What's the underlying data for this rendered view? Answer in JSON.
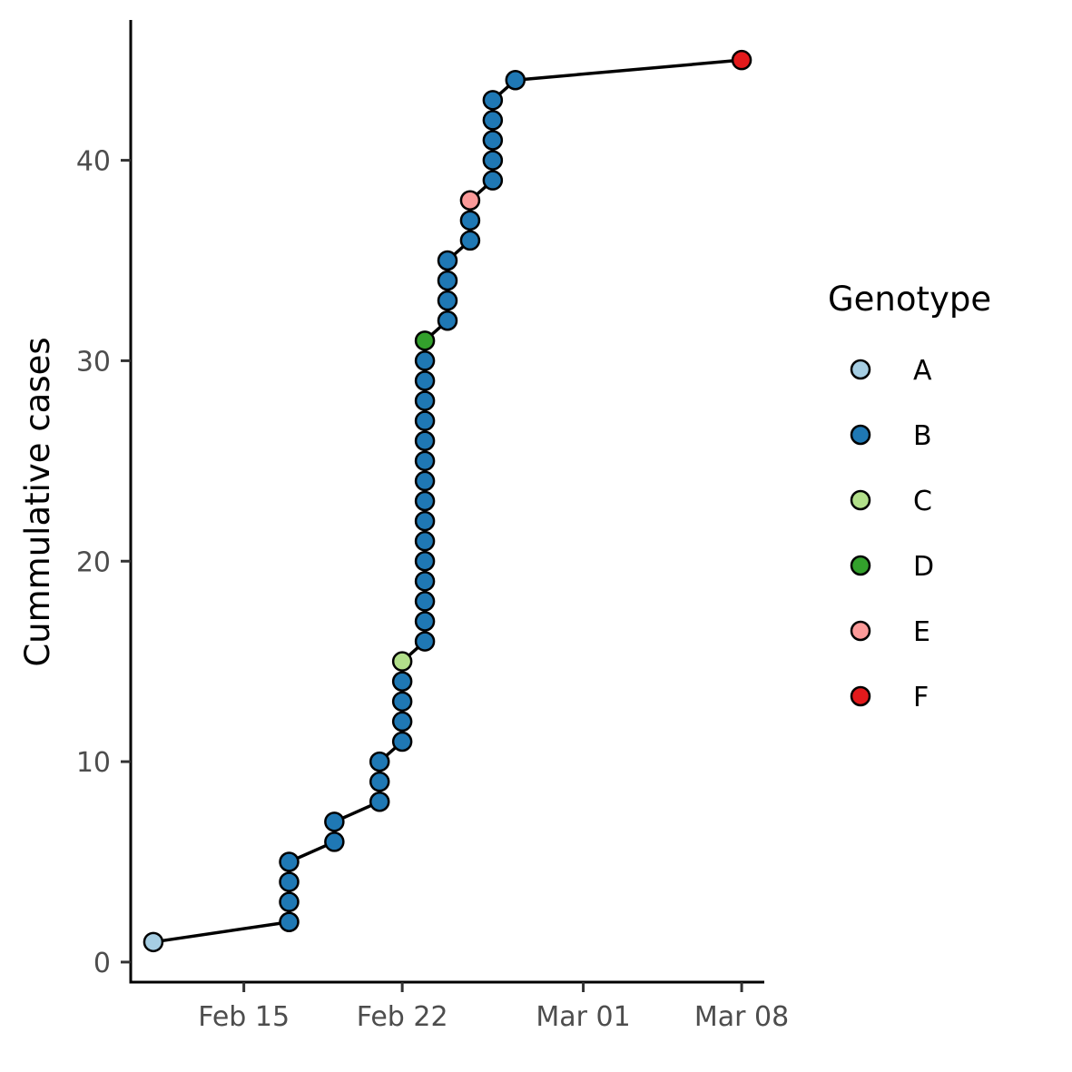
{
  "chart_data": {
    "type": "scatter",
    "subtype": "cumulative line with points",
    "title": "",
    "xlabel": "",
    "ylabel": "Cummulative cases",
    "x_scale": "date",
    "xlim": [
      "2020-02-10",
      "2020-03-09"
    ],
    "ylim": [
      -1,
      47
    ],
    "x_ticks": [
      {
        "value": "2020-02-15",
        "label": "Feb 15"
      },
      {
        "value": "2020-02-22",
        "label": "Feb 22"
      },
      {
        "value": "2020-03-01",
        "label": "Mar 01"
      },
      {
        "value": "2020-03-08",
        "label": "Mar 08"
      }
    ],
    "y_ticks": [
      0,
      10,
      20,
      30,
      40
    ],
    "grid": false,
    "legend": {
      "title": "Genotype",
      "placement": "right",
      "entries": [
        {
          "name": "A",
          "color": "#a6cee3"
        },
        {
          "name": "B",
          "color": "#1f78b4"
        },
        {
          "name": "C",
          "color": "#b2df8a"
        },
        {
          "name": "D",
          "color": "#33a02c"
        },
        {
          "name": "E",
          "color": "#fb9a99"
        },
        {
          "name": "F",
          "color": "#e31a1c"
        }
      ]
    },
    "line_color": "#000000",
    "point_outline": "#000000",
    "points": [
      {
        "date": "2020-02-11",
        "y": 1,
        "genotype": "A"
      },
      {
        "date": "2020-02-17",
        "y": 2,
        "genotype": "B"
      },
      {
        "date": "2020-02-17",
        "y": 3,
        "genotype": "B"
      },
      {
        "date": "2020-02-17",
        "y": 4,
        "genotype": "B"
      },
      {
        "date": "2020-02-17",
        "y": 5,
        "genotype": "B"
      },
      {
        "date": "2020-02-19",
        "y": 6,
        "genotype": "B"
      },
      {
        "date": "2020-02-19",
        "y": 7,
        "genotype": "B"
      },
      {
        "date": "2020-02-21",
        "y": 8,
        "genotype": "B"
      },
      {
        "date": "2020-02-21",
        "y": 9,
        "genotype": "B"
      },
      {
        "date": "2020-02-21",
        "y": 10,
        "genotype": "B"
      },
      {
        "date": "2020-02-22",
        "y": 11,
        "genotype": "B"
      },
      {
        "date": "2020-02-22",
        "y": 12,
        "genotype": "B"
      },
      {
        "date": "2020-02-22",
        "y": 13,
        "genotype": "B"
      },
      {
        "date": "2020-02-22",
        "y": 14,
        "genotype": "B"
      },
      {
        "date": "2020-02-22",
        "y": 15,
        "genotype": "C"
      },
      {
        "date": "2020-02-23",
        "y": 16,
        "genotype": "B"
      },
      {
        "date": "2020-02-23",
        "y": 17,
        "genotype": "B"
      },
      {
        "date": "2020-02-23",
        "y": 18,
        "genotype": "B"
      },
      {
        "date": "2020-02-23",
        "y": 19,
        "genotype": "B"
      },
      {
        "date": "2020-02-23",
        "y": 20,
        "genotype": "B"
      },
      {
        "date": "2020-02-23",
        "y": 21,
        "genotype": "B"
      },
      {
        "date": "2020-02-23",
        "y": 22,
        "genotype": "B"
      },
      {
        "date": "2020-02-23",
        "y": 23,
        "genotype": "B"
      },
      {
        "date": "2020-02-23",
        "y": 24,
        "genotype": "B"
      },
      {
        "date": "2020-02-23",
        "y": 25,
        "genotype": "B"
      },
      {
        "date": "2020-02-23",
        "y": 26,
        "genotype": "B"
      },
      {
        "date": "2020-02-23",
        "y": 27,
        "genotype": "B"
      },
      {
        "date": "2020-02-23",
        "y": 28,
        "genotype": "B"
      },
      {
        "date": "2020-02-23",
        "y": 29,
        "genotype": "B"
      },
      {
        "date": "2020-02-23",
        "y": 30,
        "genotype": "B"
      },
      {
        "date": "2020-02-23",
        "y": 31,
        "genotype": "D"
      },
      {
        "date": "2020-02-24",
        "y": 32,
        "genotype": "B"
      },
      {
        "date": "2020-02-24",
        "y": 33,
        "genotype": "B"
      },
      {
        "date": "2020-02-24",
        "y": 34,
        "genotype": "B"
      },
      {
        "date": "2020-02-24",
        "y": 35,
        "genotype": "B"
      },
      {
        "date": "2020-02-25",
        "y": 36,
        "genotype": "B"
      },
      {
        "date": "2020-02-25",
        "y": 37,
        "genotype": "B"
      },
      {
        "date": "2020-02-25",
        "y": 38,
        "genotype": "E"
      },
      {
        "date": "2020-02-26",
        "y": 39,
        "genotype": "B"
      },
      {
        "date": "2020-02-26",
        "y": 40,
        "genotype": "B"
      },
      {
        "date": "2020-02-26",
        "y": 41,
        "genotype": "B"
      },
      {
        "date": "2020-02-26",
        "y": 42,
        "genotype": "B"
      },
      {
        "date": "2020-02-26",
        "y": 43,
        "genotype": "B"
      },
      {
        "date": "2020-02-27",
        "y": 44,
        "genotype": "B"
      },
      {
        "date": "2020-03-08",
        "y": 45,
        "genotype": "F"
      }
    ]
  }
}
